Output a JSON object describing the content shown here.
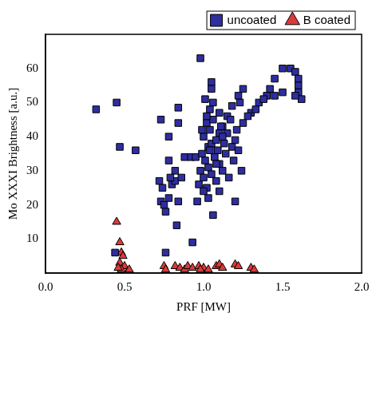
{
  "chart_data": {
    "type": "scatter",
    "x_label": "PRF [MW]",
    "y_label": "Mo XXXI Brightness [a.u.]",
    "xlim": [
      0,
      2.0
    ],
    "xticks": [
      {
        "value": 0,
        "label": "0.0"
      },
      0.5,
      {
        "value": 1.0,
        "label": "1.0"
      },
      1.5,
      {
        "value": 2.0,
        "label": "2.0"
      }
    ],
    "ylim": [
      0,
      70
    ],
    "yticks": [
      10,
      20,
      30,
      40,
      50,
      60
    ],
    "grid": false,
    "legend": "top right",
    "series": [
      {
        "name": "uncoated",
        "color": "#2e2e9e",
        "marker": "square",
        "x": [
          0.32,
          0.45,
          0.47,
          0.57,
          0.44,
          0.73,
          0.78,
          0.78,
          0.84,
          0.84,
          0.83,
          0.76,
          0.93,
          0.98,
          1.05,
          1.05,
          1.2,
          1.06,
          0.96,
          0.72,
          0.74,
          0.73,
          0.75,
          0.76,
          0.78,
          0.8,
          0.82,
          0.84,
          0.86,
          0.88,
          0.92,
          0.95,
          0.82,
          0.79,
          1.3,
          1.35,
          1.4,
          1.42,
          1.45,
          1.5,
          1.55,
          1.58,
          1.6,
          1.6,
          1.6,
          1.62,
          1.58,
          1.5,
          1.45,
          1.38,
          1.33,
          1.28,
          1.25,
          1.22,
          1.18,
          1.15,
          1.12,
          1.1,
          0.97,
          0.98,
          0.99,
          1.0,
          1.0,
          1.01,
          1.02,
          1.02,
          1.03,
          1.03,
          1.04,
          1.04,
          1.05,
          1.05,
          1.06,
          1.07,
          1.08,
          1.08,
          1.09,
          1.1,
          1.1,
          1.11,
          1.12,
          1.13,
          1.14,
          1.15,
          1.16,
          1.17,
          1.18,
          1.19,
          1.2,
          1.21,
          1.22,
          1.23,
          1.24,
          1.25,
          1.0,
          1.02,
          1.04,
          1.06,
          1.08,
          1.1,
          1.12,
          0.99,
          1.01,
          1.03
        ],
        "values": [
          48,
          50,
          37,
          36,
          6,
          45,
          40,
          33,
          48.5,
          44,
          14,
          6,
          9,
          63,
          56,
          54,
          21,
          17,
          21,
          27,
          25,
          21,
          20,
          18,
          22,
          26,
          27,
          21,
          28,
          34,
          34,
          34,
          30,
          28,
          47,
          50,
          52,
          54,
          57,
          60,
          60,
          59,
          57,
          55,
          53,
          51,
          52,
          53,
          52,
          51,
          48,
          46,
          54,
          52,
          49,
          46,
          43,
          41,
          26,
          30,
          35,
          28,
          40,
          33,
          25,
          44,
          37,
          31,
          48,
          42,
          29,
          38,
          45,
          34,
          27,
          39,
          36,
          47,
          32,
          43,
          30,
          38,
          35,
          41,
          28,
          45,
          37,
          33,
          39,
          42,
          36,
          50,
          30,
          44,
          24,
          46,
          36,
          50,
          32,
          24,
          40,
          42,
          51,
          22
        ]
      },
      {
        "name": "B coated",
        "color": "#d93a3a",
        "marker": "triangle",
        "x": [
          0.45,
          0.47,
          0.48,
          0.49,
          0.47,
          0.5,
          0.48,
          0.46,
          0.52,
          0.53,
          0.75,
          0.76,
          0.82,
          0.85,
          0.88,
          0.9,
          0.93,
          0.97,
          1.0,
          1.03,
          1.08,
          1.1,
          1.12,
          1.2,
          1.22,
          1.3,
          1.32,
          0.98
        ],
        "values": [
          15,
          9,
          6,
          5,
          3,
          2,
          1,
          1.5,
          0.5,
          1,
          2,
          1,
          2,
          1.5,
          1,
          2,
          1.5,
          2,
          1.5,
          1,
          2,
          2.5,
          1.5,
          2.5,
          2,
          1.5,
          1,
          1
        ]
      }
    ]
  }
}
